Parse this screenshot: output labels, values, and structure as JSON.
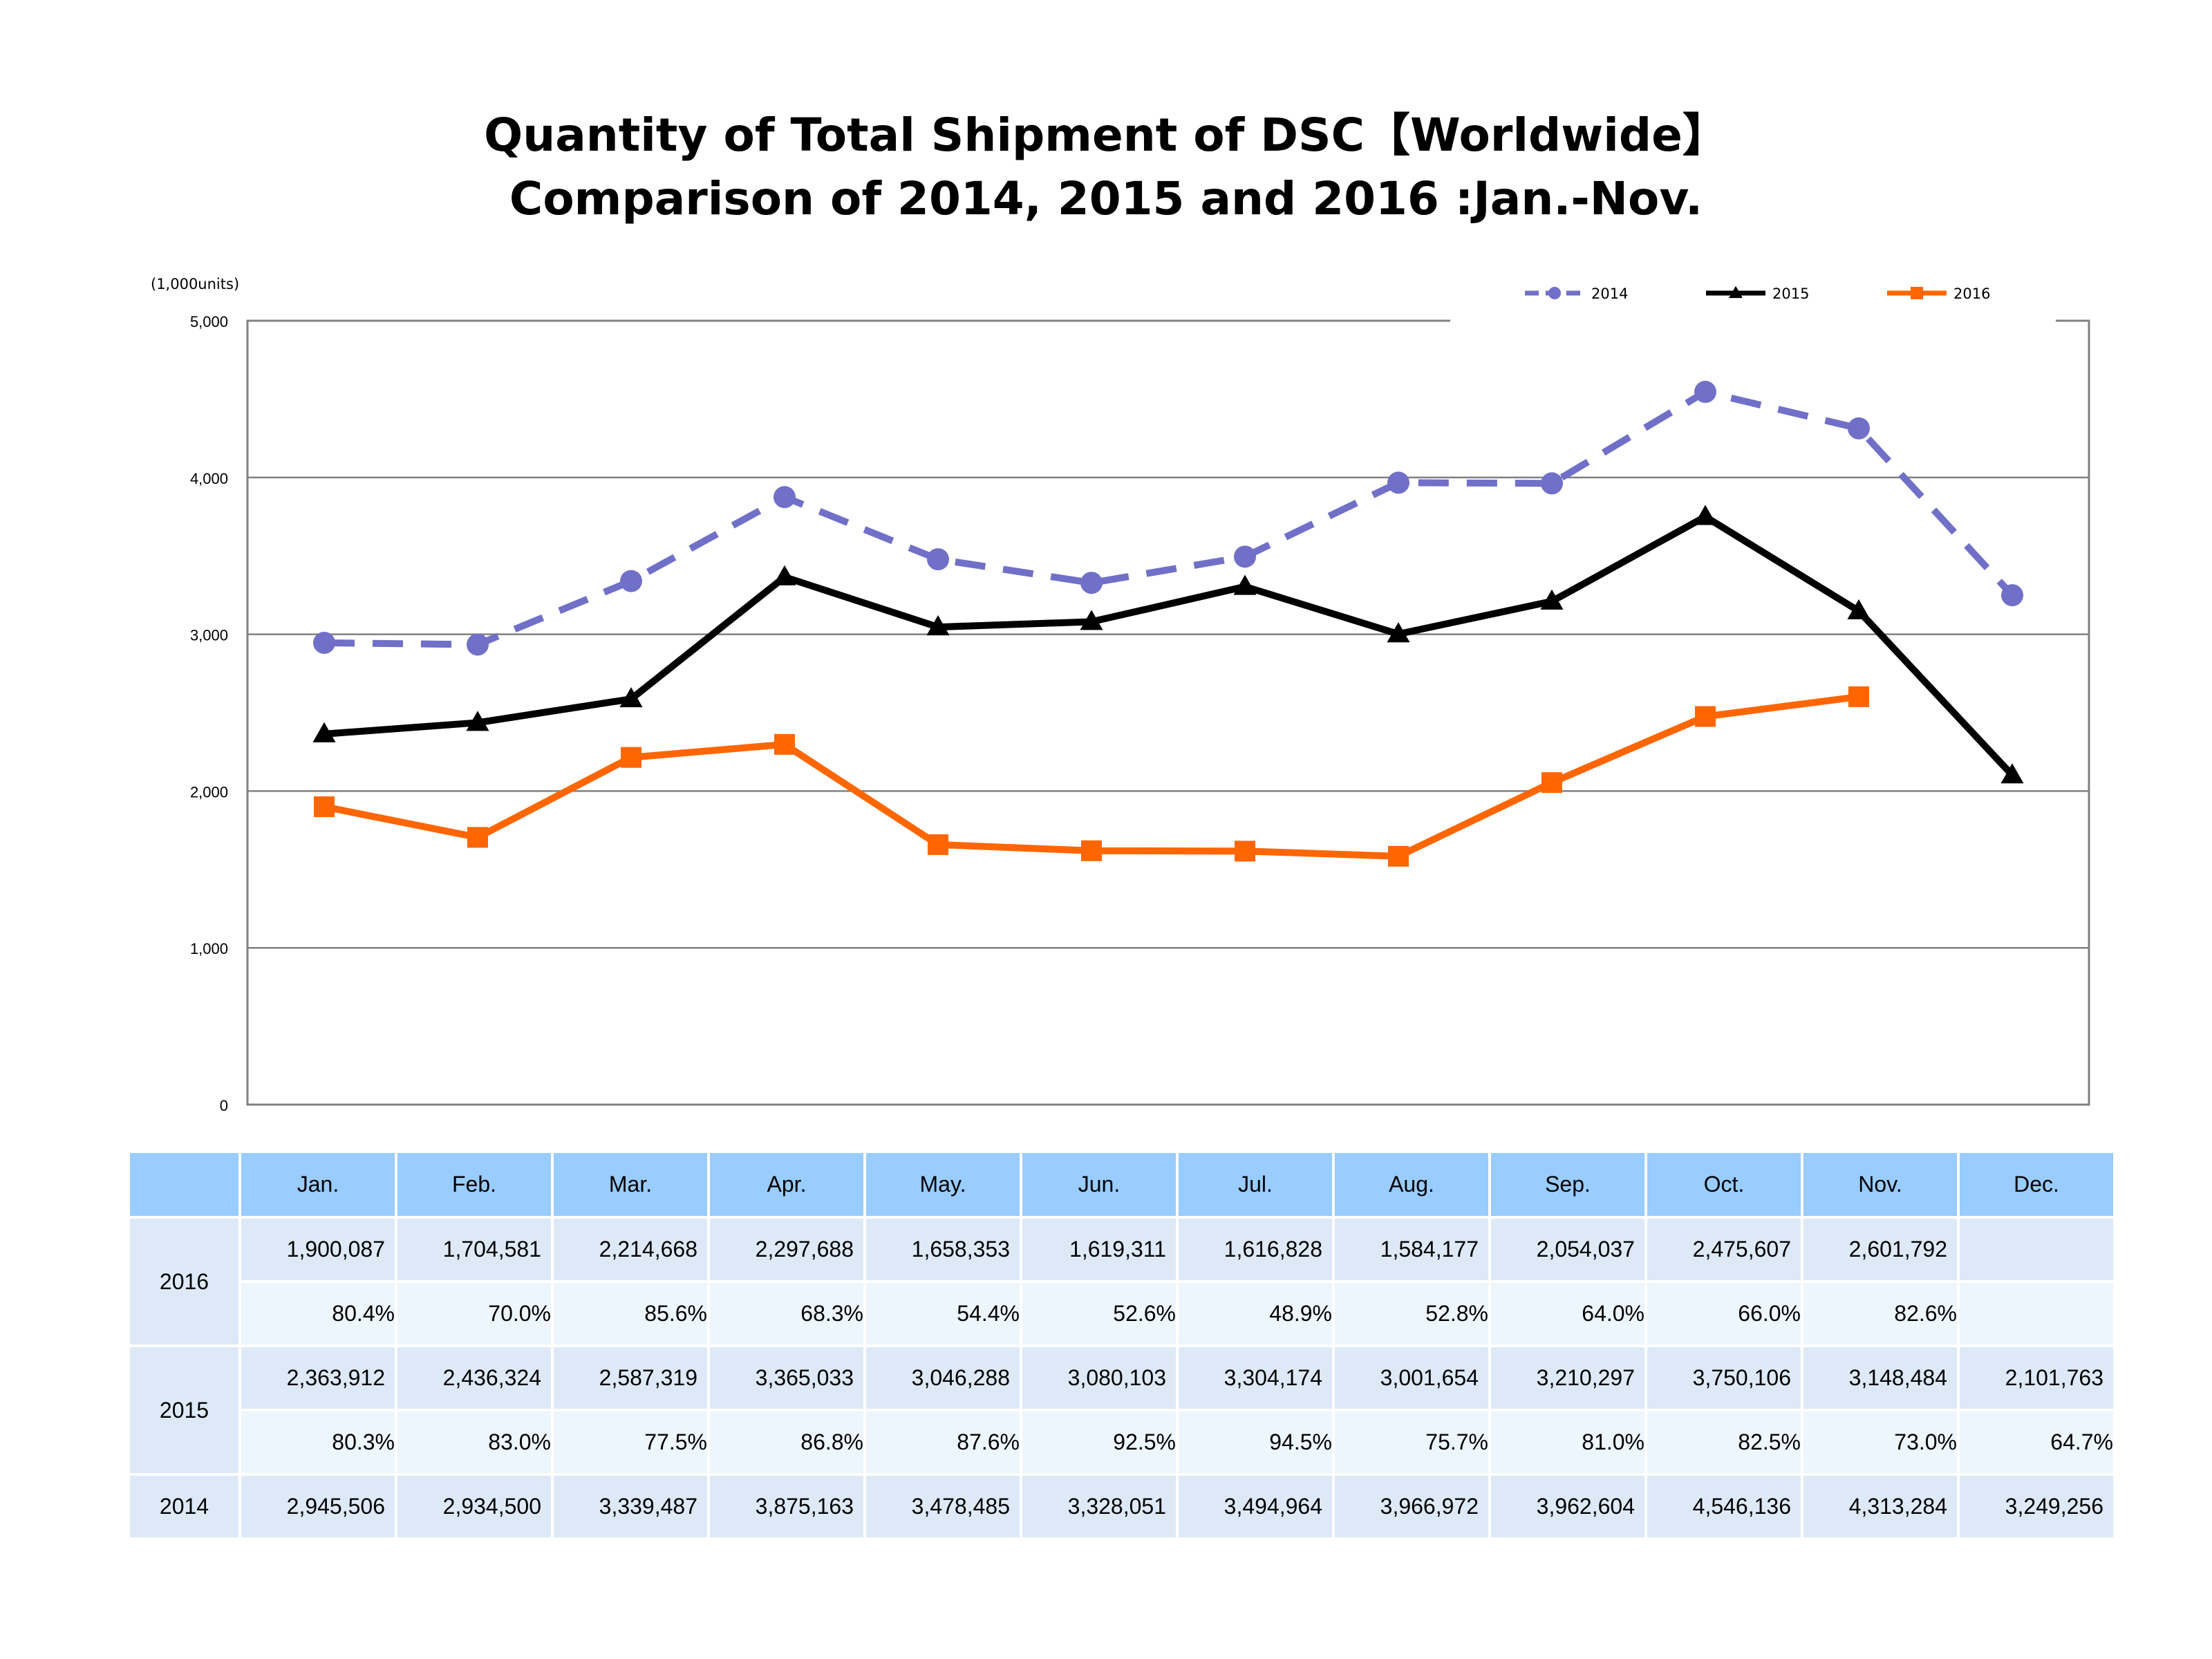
{
  "title_line1": "Quantity of Total Shipment of DSC【Worldwide】",
  "title_line2": "Comparison of 2014, 2015 and 2016 :Jan.-Nov.",
  "chart_data": {
    "type": "line",
    "unit_label": "(1,000units)",
    "categories": [
      "Jan.",
      "Feb.",
      "Mar.",
      "Apr.",
      "May.",
      "Jun.",
      "Jul.",
      "Aug.",
      "Sep.",
      "Oct.",
      "Nov.",
      "Dec."
    ],
    "ylim": [
      0,
      5000
    ],
    "yticks": [
      "0",
      "1,000",
      "2,000",
      "3,000",
      "4,000",
      "5,000"
    ],
    "grid": true,
    "legend_position": "top-right",
    "series": [
      {
        "name": "2014",
        "color": "#7070c8",
        "dash": true,
        "marker": "circle",
        "values": [
          2945.506,
          2934.5,
          3339.487,
          3875.163,
          3478.485,
          3328.051,
          3494.964,
          3966.972,
          3962.604,
          4546.136,
          4313.284,
          3249.256
        ]
      },
      {
        "name": "2015",
        "color": "#000000",
        "dash": false,
        "marker": "triangle",
        "values": [
          2363.912,
          2436.324,
          2587.319,
          3365.033,
          3046.288,
          3080.103,
          3304.174,
          3001.654,
          3210.297,
          3750.106,
          3148.484,
          2101.763
        ]
      },
      {
        "name": "2016",
        "color": "#ff6600",
        "dash": false,
        "marker": "square",
        "values": [
          1900.087,
          1704.581,
          2214.668,
          2297.688,
          1658.353,
          1619.311,
          1616.828,
          1584.177,
          2054.037,
          2475.607,
          2601.792,
          null
        ]
      }
    ]
  },
  "table": {
    "months": [
      "Jan.",
      "Feb.",
      "Mar.",
      "Apr.",
      "May.",
      "Jun.",
      "Jul.",
      "Aug.",
      "Sep.",
      "Oct.",
      "Nov.",
      "Dec."
    ],
    "rows": [
      {
        "year": "2016",
        "units": [
          "1,900,087",
          "1,704,581",
          "2,214,668",
          "2,297,688",
          "1,658,353",
          "1,619,311",
          "1,616,828",
          "1,584,177",
          "2,054,037",
          "2,475,607",
          "2,601,792",
          ""
        ],
        "ratio": [
          "80.4%",
          "70.0%",
          "85.6%",
          "68.3%",
          "54.4%",
          "52.6%",
          "48.9%",
          "52.8%",
          "64.0%",
          "66.0%",
          "82.6%",
          ""
        ]
      },
      {
        "year": "2015",
        "units": [
          "2,363,912",
          "2,436,324",
          "2,587,319",
          "3,365,033",
          "3,046,288",
          "3,080,103",
          "3,304,174",
          "3,001,654",
          "3,210,297",
          "3,750,106",
          "3,148,484",
          "2,101,763"
        ],
        "ratio": [
          "80.3%",
          "83.0%",
          "77.5%",
          "86.8%",
          "87.6%",
          "92.5%",
          "94.5%",
          "75.7%",
          "81.0%",
          "82.5%",
          "73.0%",
          "64.7%"
        ]
      },
      {
        "year": "2014",
        "units": [
          "2,945,506",
          "2,934,500",
          "3,339,487",
          "3,875,163",
          "3,478,485",
          "3,328,051",
          "3,494,964",
          "3,966,972",
          "3,962,604",
          "4,546,136",
          "4,313,284",
          "3,249,256"
        ]
      }
    ]
  }
}
